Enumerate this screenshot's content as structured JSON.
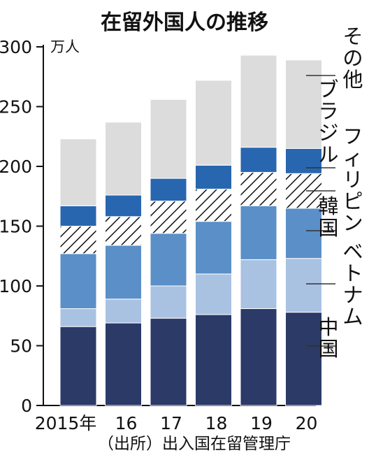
{
  "chart_data": {
    "type": "bar",
    "stacked": true,
    "title": "在留外国人の推移",
    "ylabel": "万人",
    "ylim": [
      0,
      300
    ],
    "yticks": [
      "0",
      "50",
      "100",
      "150",
      "200",
      "250",
      "300"
    ],
    "categories": [
      "2015年",
      "16",
      "17",
      "18",
      "19",
      "20"
    ],
    "series": [
      {
        "name": "中国",
        "color": "#2b3a67",
        "values": [
          66,
          69,
          73,
          76,
          81,
          78
        ]
      },
      {
        "name": "ベトナム",
        "color": "#a9c2e2",
        "values": [
          15,
          20,
          27,
          34,
          41,
          45
        ]
      },
      {
        "name": "韓国",
        "color": "#5a8fc8",
        "values": [
          46,
          45,
          44,
          44,
          45,
          42
        ]
      },
      {
        "name": "フィリピン",
        "color": "hatch",
        "values": [
          23,
          24,
          27,
          27,
          28,
          29
        ]
      },
      {
        "name": "ブラジル",
        "color": "#2866b0",
        "values": [
          17,
          18,
          19,
          20,
          21,
          21
        ]
      },
      {
        "name": "その他",
        "color": "#dcdcdc",
        "values": [
          56,
          61,
          66,
          71,
          77,
          74
        ]
      }
    ],
    "source": "（出所）出入国在留管理庁",
    "grid": false,
    "legend": "right"
  }
}
